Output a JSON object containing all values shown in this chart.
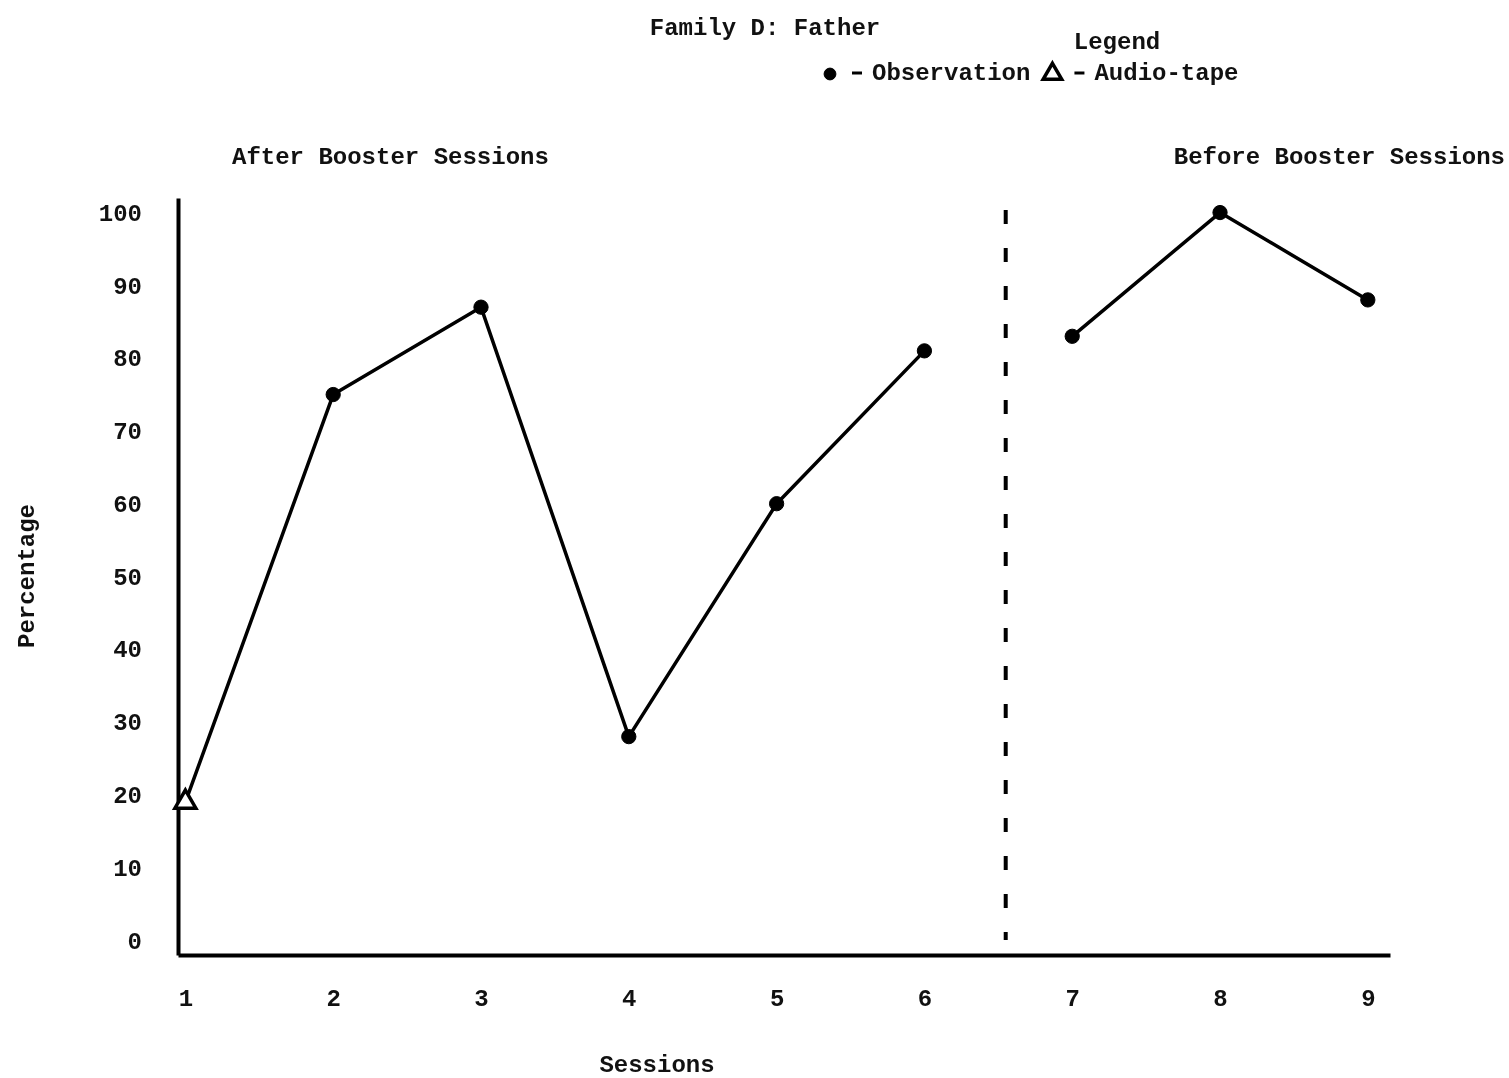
{
  "chart_data": {
    "type": "line",
    "title": "Family D: Father",
    "xlabel": "Sessions",
    "ylabel": "Percentage",
    "legend_title": "Legend",
    "legend": "top right",
    "grid": false,
    "xlim": [
      0.95,
      9.15
    ],
    "xticks": [
      1,
      2,
      3,
      4,
      5,
      6,
      7,
      8,
      9
    ],
    "ylim": [
      -2,
      102
    ],
    "yticks": [
      0,
      10,
      20,
      30,
      40,
      50,
      60,
      70,
      80,
      90,
      100
    ],
    "annotations": [
      "After Booster Sessions",
      "Before Booster Sessions"
    ],
    "ref_lines": [
      {
        "axis": "x",
        "value": 6.55,
        "line_style": "dashed",
        "color": "#000000"
      }
    ],
    "series": [
      {
        "marker": "none",
        "line_style": "solid",
        "color": "#000000",
        "x": [
          1,
          2,
          3,
          4,
          5,
          6
        ],
        "values": [
          19,
          75,
          87,
          28,
          60,
          81
        ]
      },
      {
        "marker": "none",
        "line_style": "solid",
        "color": "#000000",
        "x": [
          7,
          8,
          9
        ],
        "values": [
          83,
          100,
          88
        ]
      },
      {
        "type": "scatter",
        "name": "Observation",
        "marker": "circle",
        "color": "#000000",
        "x": [
          2,
          3,
          4,
          5,
          6,
          7,
          8,
          9
        ],
        "values": [
          75,
          87,
          28,
          60,
          81,
          83,
          100,
          88
        ]
      },
      {
        "type": "scatter",
        "name": "Audio-tape",
        "marker": "triangle",
        "color": "#000000",
        "x": [
          1
        ],
        "values": [
          19
        ]
      }
    ]
  }
}
